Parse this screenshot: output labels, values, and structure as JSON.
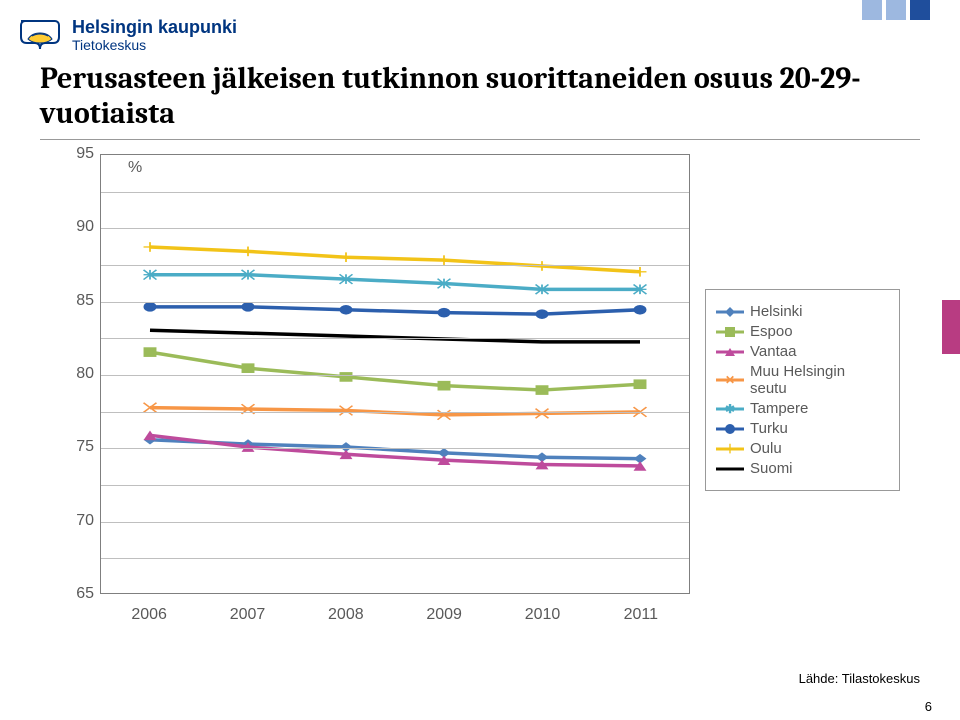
{
  "brand": {
    "title": "Helsingin kaupunki",
    "subtitle": "Tietokeskus"
  },
  "top_squares": [
    "#9db8e0",
    "#9db8e0",
    "#1f4e9c"
  ],
  "side_block_color": "#b83c82",
  "chart": {
    "type": "line",
    "title": "Perusasteen jälkeisen tutkinnon suorittaneiden osuus 20-29-vuotiaista",
    "percent_label": "%",
    "ylim": [
      65,
      95
    ],
    "ytick_step": 5,
    "yticks": [
      65,
      70,
      75,
      80,
      85,
      90,
      95
    ],
    "categories": [
      "2006",
      "2007",
      "2008",
      "2009",
      "2010",
      "2011"
    ],
    "grid_color": "#bfbfbf",
    "border_color": "#7f7f7f",
    "series": [
      {
        "name": "Helsinki",
        "color": "#4f81bd",
        "marker": "diamond",
        "values": [
          75.5,
          75.2,
          75.0,
          74.6,
          74.3,
          74.2
        ]
      },
      {
        "name": "Espoo",
        "color": "#9bbb59",
        "marker": "square",
        "values": [
          81.5,
          80.4,
          79.8,
          79.2,
          78.9,
          79.3
        ]
      },
      {
        "name": "Vantaa",
        "color": "#be4b9c",
        "marker": "triangle",
        "values": [
          75.8,
          75.0,
          74.5,
          74.1,
          73.8,
          73.7
        ]
      },
      {
        "name": "Muu Helsingin seutu",
        "color": "#f79646",
        "marker": "x",
        "values": [
          77.7,
          77.6,
          77.5,
          77.2,
          77.3,
          77.4
        ]
      },
      {
        "name": "Tampere",
        "color": "#4bacc6",
        "marker": "asterisk",
        "values": [
          86.8,
          86.8,
          86.5,
          86.2,
          85.8,
          85.8
        ]
      },
      {
        "name": "Turku",
        "color": "#2c5fad",
        "marker": "circle",
        "values": [
          84.6,
          84.6,
          84.4,
          84.2,
          84.1,
          84.4
        ]
      },
      {
        "name": "Oulu",
        "color": "#f2c318",
        "marker": "plus",
        "values": [
          88.7,
          88.4,
          88.0,
          87.8,
          87.4,
          87.0
        ]
      },
      {
        "name": "Suomi",
        "color": "#000000",
        "marker": "none",
        "values": [
          83.0,
          82.8,
          82.6,
          82.4,
          82.2,
          82.2
        ]
      }
    ]
  },
  "source": "Lähde: Tilastokeskus",
  "page_number": "6"
}
